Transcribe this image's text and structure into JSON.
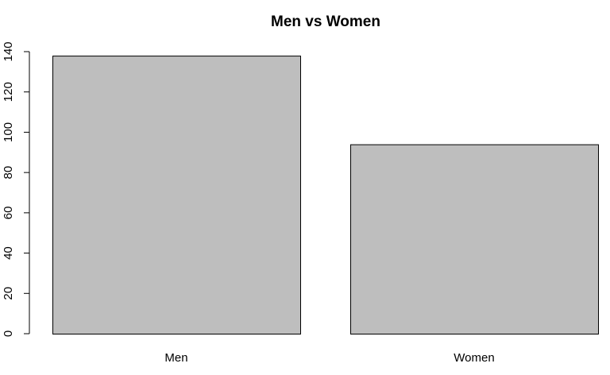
{
  "chart_data": {
    "type": "bar",
    "title": "Men vs Women",
    "categories": [
      "Men",
      "Women"
    ],
    "values": [
      138,
      94
    ],
    "xlabel": "",
    "ylabel": "",
    "ylim": [
      0,
      140
    ],
    "yticks": [
      0,
      20,
      40,
      60,
      80,
      100,
      120,
      140
    ],
    "grid": false,
    "legend": "none",
    "bar_color": "#bebebe",
    "border_color": "#000000"
  }
}
